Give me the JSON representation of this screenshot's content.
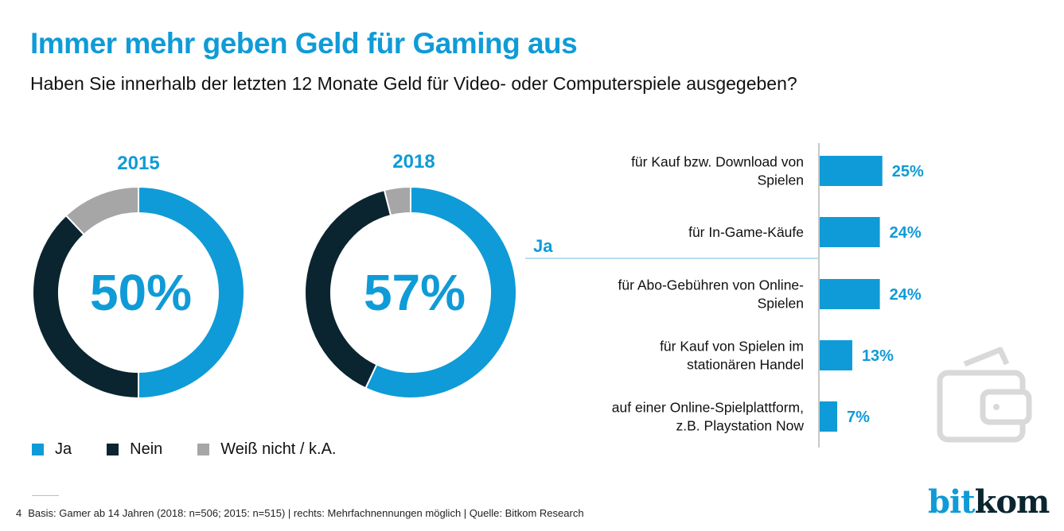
{
  "header": {
    "title": "Immer mehr geben Geld für Gaming aus",
    "subtitle": "Haben Sie innerhalb der letzten 12 Monate Geld für Video- oder Computerspiele ausgegeben?"
  },
  "colors": {
    "ja": "#0f9bd7",
    "nein": "#0a2530",
    "unknown": "#a6a6a6",
    "axis": "#c8c8c8",
    "connector": "#9fd3ea",
    "icon": "#d9d9d9"
  },
  "chart_data": [
    {
      "type": "pie",
      "title": "2015",
      "center_label": "50%",
      "categories": [
        "Ja",
        "Nein",
        "Weiß nicht / k.A."
      ],
      "values": [
        50,
        38,
        12
      ]
    },
    {
      "type": "pie",
      "title": "2018",
      "center_label": "57%",
      "categories": [
        "Ja",
        "Nein",
        "Weiß nicht / k.A."
      ],
      "values": [
        57,
        39,
        4
      ]
    },
    {
      "type": "bar",
      "orientation": "horizontal",
      "group_label": "Ja",
      "categories": [
        [
          "für Kauf bzw. Download von",
          "Spielen"
        ],
        [
          "für In-Game-Käufe"
        ],
        [
          "für Abo-Gebühren von Online-",
          "Spielen"
        ],
        [
          "für Kauf von Spielen im",
          "stationären Handel"
        ],
        [
          "auf einer Online-Spielplattform,",
          "z.B. Playstation Now"
        ]
      ],
      "values": [
        25,
        24,
        24,
        13,
        7
      ],
      "value_labels": [
        "25%",
        "24%",
        "24%",
        "13%",
        "7%"
      ],
      "unit": "%"
    }
  ],
  "legend": [
    {
      "label": "Ja",
      "color_key": "ja"
    },
    {
      "label": "Nein",
      "color_key": "nein"
    },
    {
      "label": "Weiß nicht / k.A.",
      "color_key": "unknown"
    }
  ],
  "footer": {
    "page_number": "4",
    "note": "Basis: Gamer ab 14 Jahren (2018: n=506; 2015: n=515) | rechts: Mehrfachnennungen möglich | Quelle: Bitkom Research"
  },
  "logo": {
    "part1": "bit",
    "part2": "kom"
  },
  "icons": {
    "decoration": "wallet-icon"
  }
}
